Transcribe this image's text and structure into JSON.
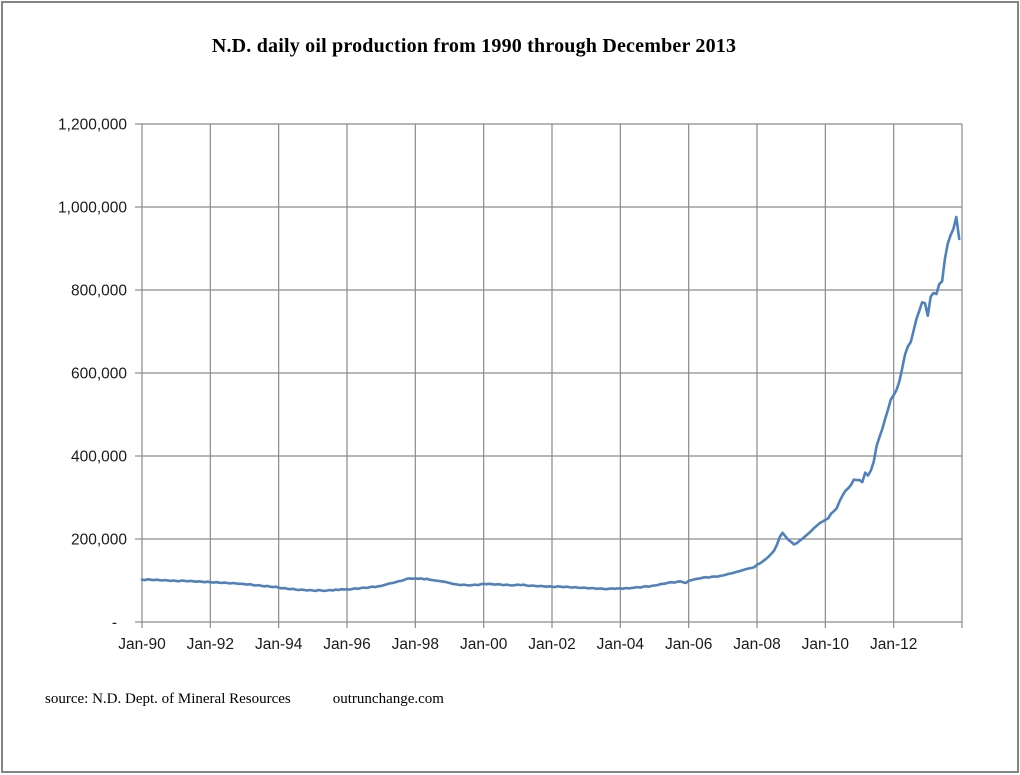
{
  "colors": {
    "line": "#4F81BD",
    "grid": "#8a8a8a",
    "text": "#1a1a1a",
    "border": "#848484"
  },
  "footer": {
    "source_label": "source: N.D. Dept. of Mineral Resources",
    "website_label": "outrunchange.com"
  },
  "chart_data": {
    "type": "line",
    "title": "N.D. daily oil production from 1990 through December 2013",
    "xlabel": "",
    "ylabel": "",
    "grid": true,
    "legend": "none",
    "ylim": [
      0,
      1200000
    ],
    "y_tick_interval": 200000,
    "y_tick_labels": [
      "-",
      "200,000",
      "400,000",
      "600,000",
      "800,000",
      "1,000,000",
      "1,200,000"
    ],
    "x_tick_labels": [
      "Jan-90",
      "Jan-92",
      "Jan-94",
      "Jan-96",
      "Jan-98",
      "Jan-00",
      "Jan-02",
      "Jan-04",
      "Jan-06",
      "Jan-08",
      "Jan-10",
      "Jan-12"
    ],
    "x_axis_span": "Jan-1990 through Jan-2014 axis, data ends Dec-2013",
    "series": [
      {
        "name": "N.D. daily oil production (barrels per day)",
        "color": "#4F81BD",
        "interval": "monthly",
        "start": "1990-01",
        "end": "2013-12",
        "values": [
          102000,
          101000,
          103000,
          102000,
          101000,
          102000,
          101000,
          100000,
          101000,
          100000,
          99000,
          100000,
          99000,
          98000,
          100000,
          99000,
          98000,
          99000,
          98000,
          97000,
          98000,
          97000,
          96000,
          97000,
          96000,
          95000,
          96000,
          95000,
          94000,
          95000,
          94000,
          93000,
          94000,
          93000,
          92000,
          92000,
          91000,
          90000,
          91000,
          89000,
          88000,
          89000,
          87000,
          86000,
          87000,
          85000,
          84000,
          85000,
          83000,
          81000,
          82000,
          80000,
          79000,
          80000,
          78000,
          77000,
          78000,
          77000,
          76000,
          77000,
          76000,
          75000,
          77000,
          76000,
          75000,
          76000,
          77000,
          76000,
          78000,
          77000,
          79000,
          78000,
          79000,
          78000,
          80000,
          81000,
          80000,
          82000,
          83000,
          82000,
          84000,
          85000,
          84000,
          86000,
          87000,
          89000,
          91000,
          93000,
          94000,
          96000,
          98000,
          99000,
          101000,
          104000,
          105000,
          104000,
          105000,
          104000,
          105000,
          103000,
          104000,
          102000,
          101000,
          100000,
          99000,
          98000,
          97000,
          96000,
          94000,
          92000,
          91000,
          90000,
          89000,
          90000,
          89000,
          88000,
          89000,
          90000,
          89000,
          91000,
          92000,
          91000,
          92000,
          91000,
          90000,
          91000,
          90000,
          89000,
          90000,
          89000,
          88000,
          89000,
          90000,
          89000,
          90000,
          88000,
          87000,
          88000,
          87000,
          86000,
          87000,
          86000,
          85000,
          86000,
          85000,
          84000,
          86000,
          85000,
          84000,
          85000,
          84000,
          83000,
          84000,
          83000,
          82000,
          83000,
          82000,
          81000,
          82000,
          81000,
          80000,
          81000,
          80000,
          79000,
          80000,
          81000,
          80000,
          81000,
          81000,
          80000,
          82000,
          81000,
          82000,
          83000,
          84000,
          83000,
          85000,
          86000,
          85000,
          87000,
          88000,
          89000,
          91000,
          92000,
          93000,
          95000,
          96000,
          95000,
          97000,
          98000,
          96000,
          94000,
          99000,
          101000,
          103000,
          104000,
          105000,
          107000,
          108000,
          107000,
          109000,
          110000,
          109000,
          111000,
          112000,
          114000,
          116000,
          117000,
          119000,
          121000,
          123000,
          125000,
          127000,
          129000,
          130000,
          132000,
          138000,
          141000,
          146000,
          151000,
          157000,
          164000,
          172000,
          186000,
          205000,
          215000,
          206000,
          198000,
          193000,
          187000,
          190000,
          196000,
          201000,
          207000,
          213000,
          219000,
          226000,
          232000,
          238000,
          242000,
          246000,
          250000,
          261000,
          267000,
          274000,
          291000,
          304000,
          316000,
          322000,
          330000,
          343000,
          342000,
          342000,
          337000,
          360000,
          353000,
          365000,
          386000,
          424000,
          445000,
          465000,
          489000,
          512000,
          536000,
          547000,
          559000,
          580000,
          611000,
          645000,
          664000,
          675000,
          702000,
          730000,
          750000,
          770000,
          768000,
          738000,
          784000,
          793000,
          790000,
          814000,
          821000,
          875000,
          912000,
          932000,
          948000,
          976000,
          923000
        ]
      }
    ]
  }
}
